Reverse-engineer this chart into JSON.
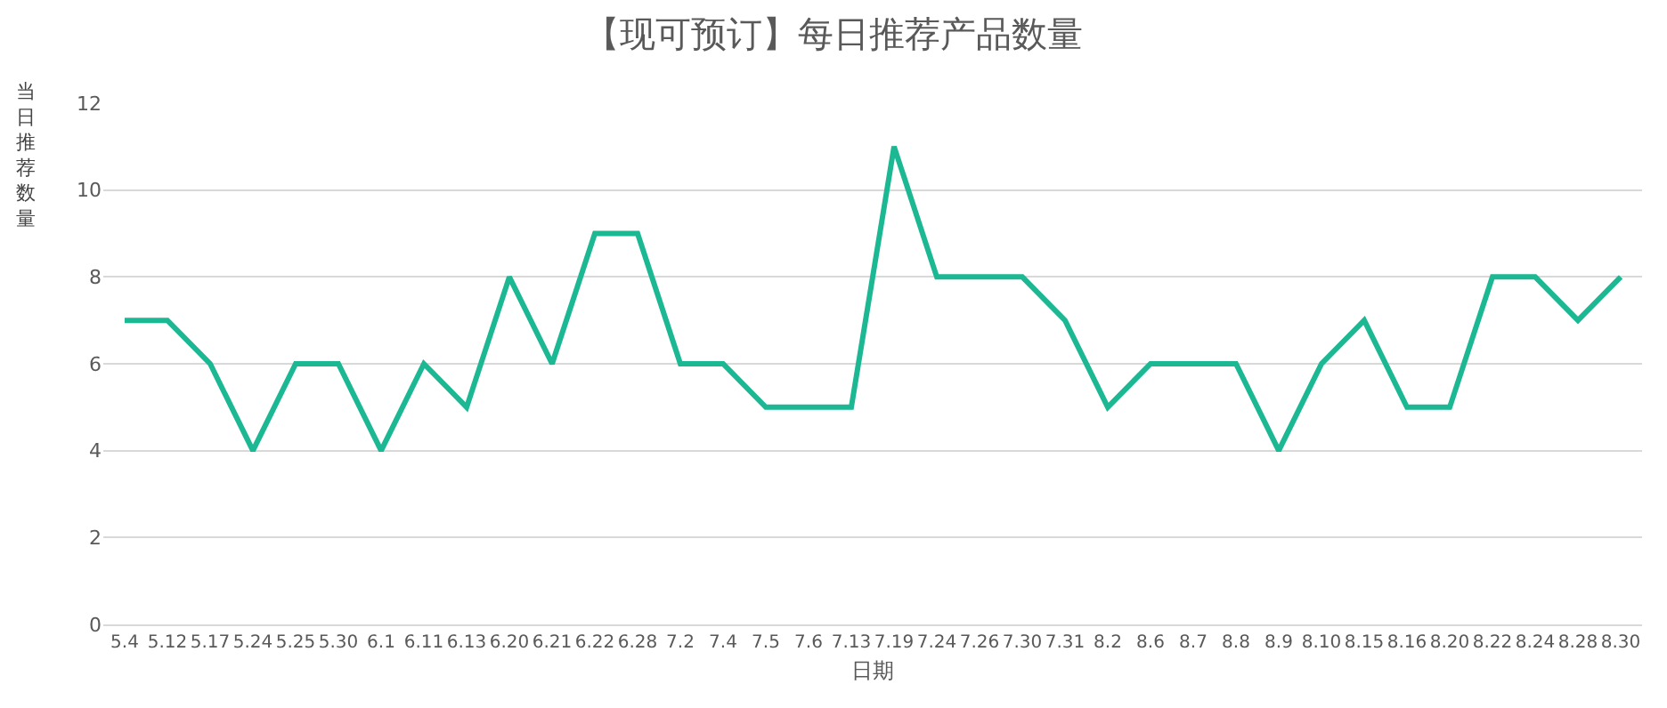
{
  "chart_data": {
    "type": "line",
    "title": "【现可预订】每日推荐产品数量",
    "xlabel": "日期",
    "ylabel": "当日推荐数量",
    "categories": [
      "5.4",
      "5.12",
      "5.17",
      "5.24",
      "5.25",
      "5.30",
      "6.1",
      "6.11",
      "6.13",
      "6.20",
      "6.21",
      "6.22",
      "6.28",
      "7.2",
      "7.4",
      "7.5",
      "7.6",
      "7.13",
      "7.19",
      "7.24",
      "7.26",
      "7.30",
      "7.31",
      "8.2",
      "8.6",
      "8.7",
      "8.8",
      "8.9",
      "8.10",
      "8.15",
      "8.16",
      "8.20",
      "8.22",
      "8.24",
      "8.28",
      "8.30"
    ],
    "series": [
      {
        "color": "#1bb893",
        "values": [
          7,
          7,
          6,
          4,
          6,
          6,
          4,
          6,
          5,
          8,
          6,
          9,
          9,
          6,
          6,
          5,
          5,
          5,
          11,
          8,
          8,
          8,
          7,
          5,
          6,
          6,
          6,
          4,
          6,
          7,
          5,
          5,
          8,
          8,
          7,
          8
        ]
      }
    ],
    "ylim": [
      0,
      12
    ],
    "yticks": [
      0,
      2,
      4,
      6,
      8,
      10,
      12
    ],
    "grid": "y",
    "marker": "none",
    "line_style": "solid"
  }
}
